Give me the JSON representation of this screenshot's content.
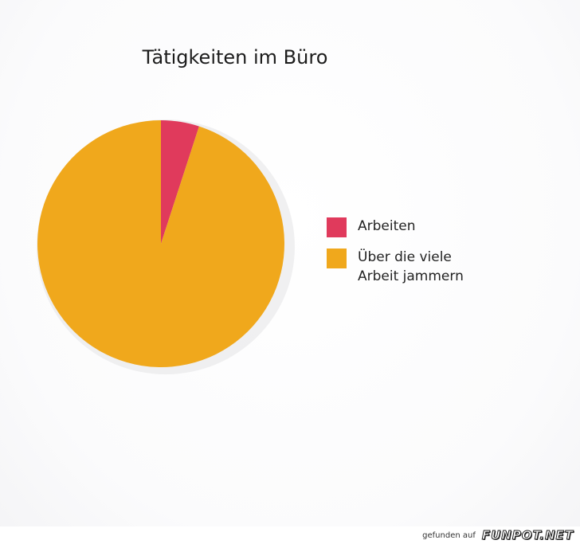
{
  "chart_data": {
    "type": "pie",
    "title": "Tätigkeiten im Büro",
    "categories": [
      "Arbeiten",
      "Über die viele\nArbeit jammern"
    ],
    "values": [
      5,
      95
    ],
    "colors": [
      "#e03a5c",
      "#f0a81c"
    ],
    "legend_position": "right"
  },
  "footer": {
    "text": "gefunden auf",
    "logo": "FUNPOT.NET"
  }
}
